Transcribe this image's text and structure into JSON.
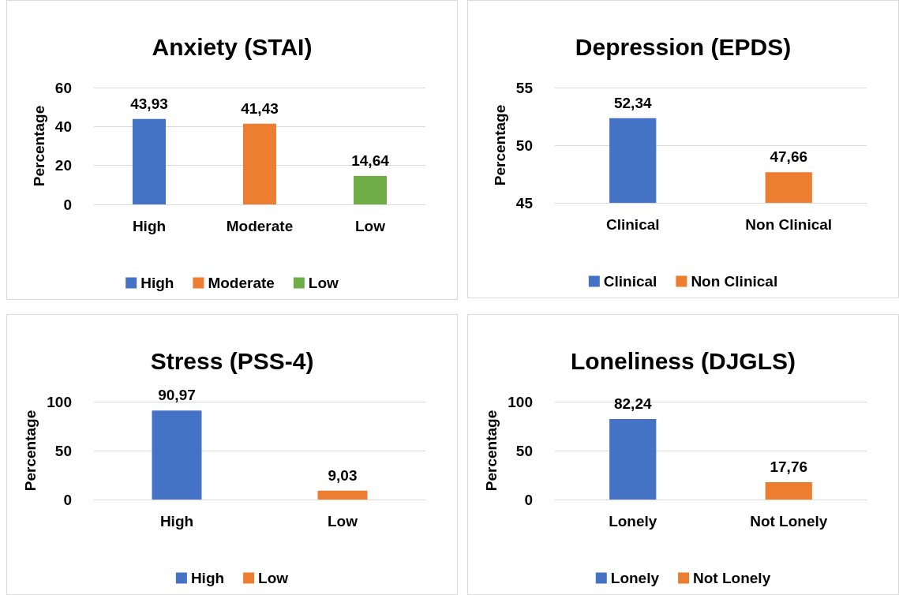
{
  "chart_data": [
    {
      "type": "bar",
      "title": "Anxiety (STAI)",
      "ylabel": "Percentage",
      "categories": [
        "High",
        "Moderate",
        "Low"
      ],
      "series": [
        {
          "name": "High",
          "color": "#4472c4",
          "values": [
            43.93,
            null,
            null
          ],
          "value_labels": [
            "43,93",
            null,
            null
          ]
        },
        {
          "name": "Moderate",
          "color": "#ed7d31",
          "values": [
            null,
            41.43,
            null
          ],
          "value_labels": [
            null,
            "41,43",
            null
          ]
        },
        {
          "name": "Low",
          "color": "#70ad47",
          "values": [
            null,
            null,
            14.64
          ],
          "value_labels": [
            null,
            null,
            "14,64"
          ]
        }
      ],
      "ylim": [
        0,
        60
      ],
      "yticks": [
        0,
        20,
        40,
        60
      ],
      "grid": "y",
      "legend": "bottom"
    },
    {
      "type": "bar",
      "title": "Depression (EPDS)",
      "ylabel": "Percentage",
      "categories": [
        "Clinical",
        "Non Clinical"
      ],
      "series": [
        {
          "name": "Clinical",
          "color": "#4472c4",
          "values": [
            52.34,
            null
          ],
          "value_labels": [
            "52,34",
            null
          ]
        },
        {
          "name": "Non Clinical",
          "color": "#ed7d31",
          "values": [
            null,
            47.66
          ],
          "value_labels": [
            null,
            "47,66"
          ]
        }
      ],
      "ylim": [
        45,
        55
      ],
      "yticks": [
        45,
        50,
        55
      ],
      "grid": "y",
      "legend": "bottom"
    },
    {
      "type": "bar",
      "title": "Stress (PSS-4)",
      "ylabel": "Percentage",
      "categories": [
        "High",
        "Low"
      ],
      "series": [
        {
          "name": "High",
          "color": "#4472c4",
          "values": [
            90.97,
            null
          ],
          "value_labels": [
            "90,97",
            null
          ]
        },
        {
          "name": "Low",
          "color": "#ed7d31",
          "values": [
            null,
            9.03
          ],
          "value_labels": [
            null,
            "9,03"
          ]
        }
      ],
      "ylim": [
        0,
        100
      ],
      "yticks": [
        0,
        50,
        100
      ],
      "grid": "y",
      "legend": "bottom"
    },
    {
      "type": "bar",
      "title": "Loneliness (DJGLS)",
      "ylabel": "Percentage",
      "categories": [
        "Lonely",
        "Not Lonely"
      ],
      "series": [
        {
          "name": "Lonely",
          "color": "#4472c4",
          "values": [
            82.24,
            null
          ],
          "value_labels": [
            "82,24",
            null
          ]
        },
        {
          "name": "Not Lonely",
          "color": "#ed7d31",
          "values": [
            null,
            17.76
          ],
          "value_labels": [
            null,
            "17,76"
          ]
        }
      ],
      "ylim": [
        0,
        100
      ],
      "yticks": [
        0,
        50,
        100
      ],
      "grid": "y",
      "legend": "bottom"
    }
  ]
}
